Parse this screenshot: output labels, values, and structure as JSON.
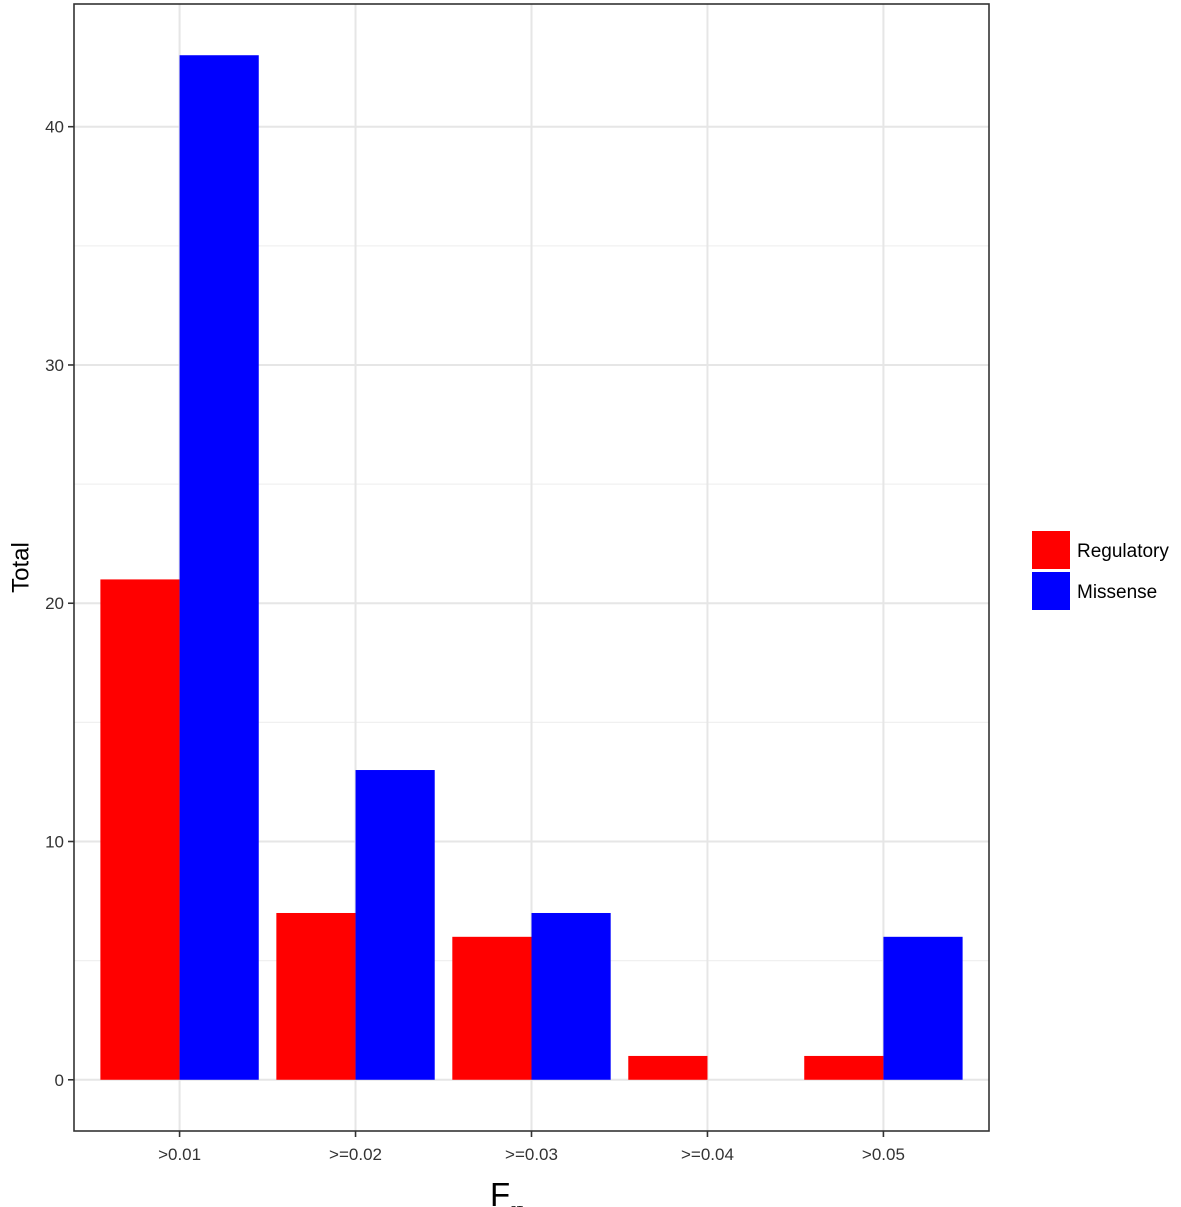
{
  "chart_data": {
    "type": "bar",
    "categories": [
      ">0.01",
      ">=0.02",
      ">=0.03",
      ">=0.04",
      ">0.05"
    ],
    "series": [
      {
        "name": "Regulatory",
        "color": "#ff0000",
        "values": [
          21,
          7,
          6,
          1,
          1
        ]
      },
      {
        "name": "Missense",
        "color": "#0000ff",
        "values": [
          43,
          13,
          7,
          0,
          6
        ]
      }
    ],
    "xlabel_main": "F",
    "xlabel_sub": "ST",
    "ylabel": "Total",
    "ylim": [
      -2.15,
      45.15
    ],
    "y_ticks": [
      0,
      10,
      20,
      30,
      40
    ],
    "y_minor_ticks": [
      5,
      15,
      25,
      35
    ],
    "grid": true,
    "legend_position": "right"
  }
}
